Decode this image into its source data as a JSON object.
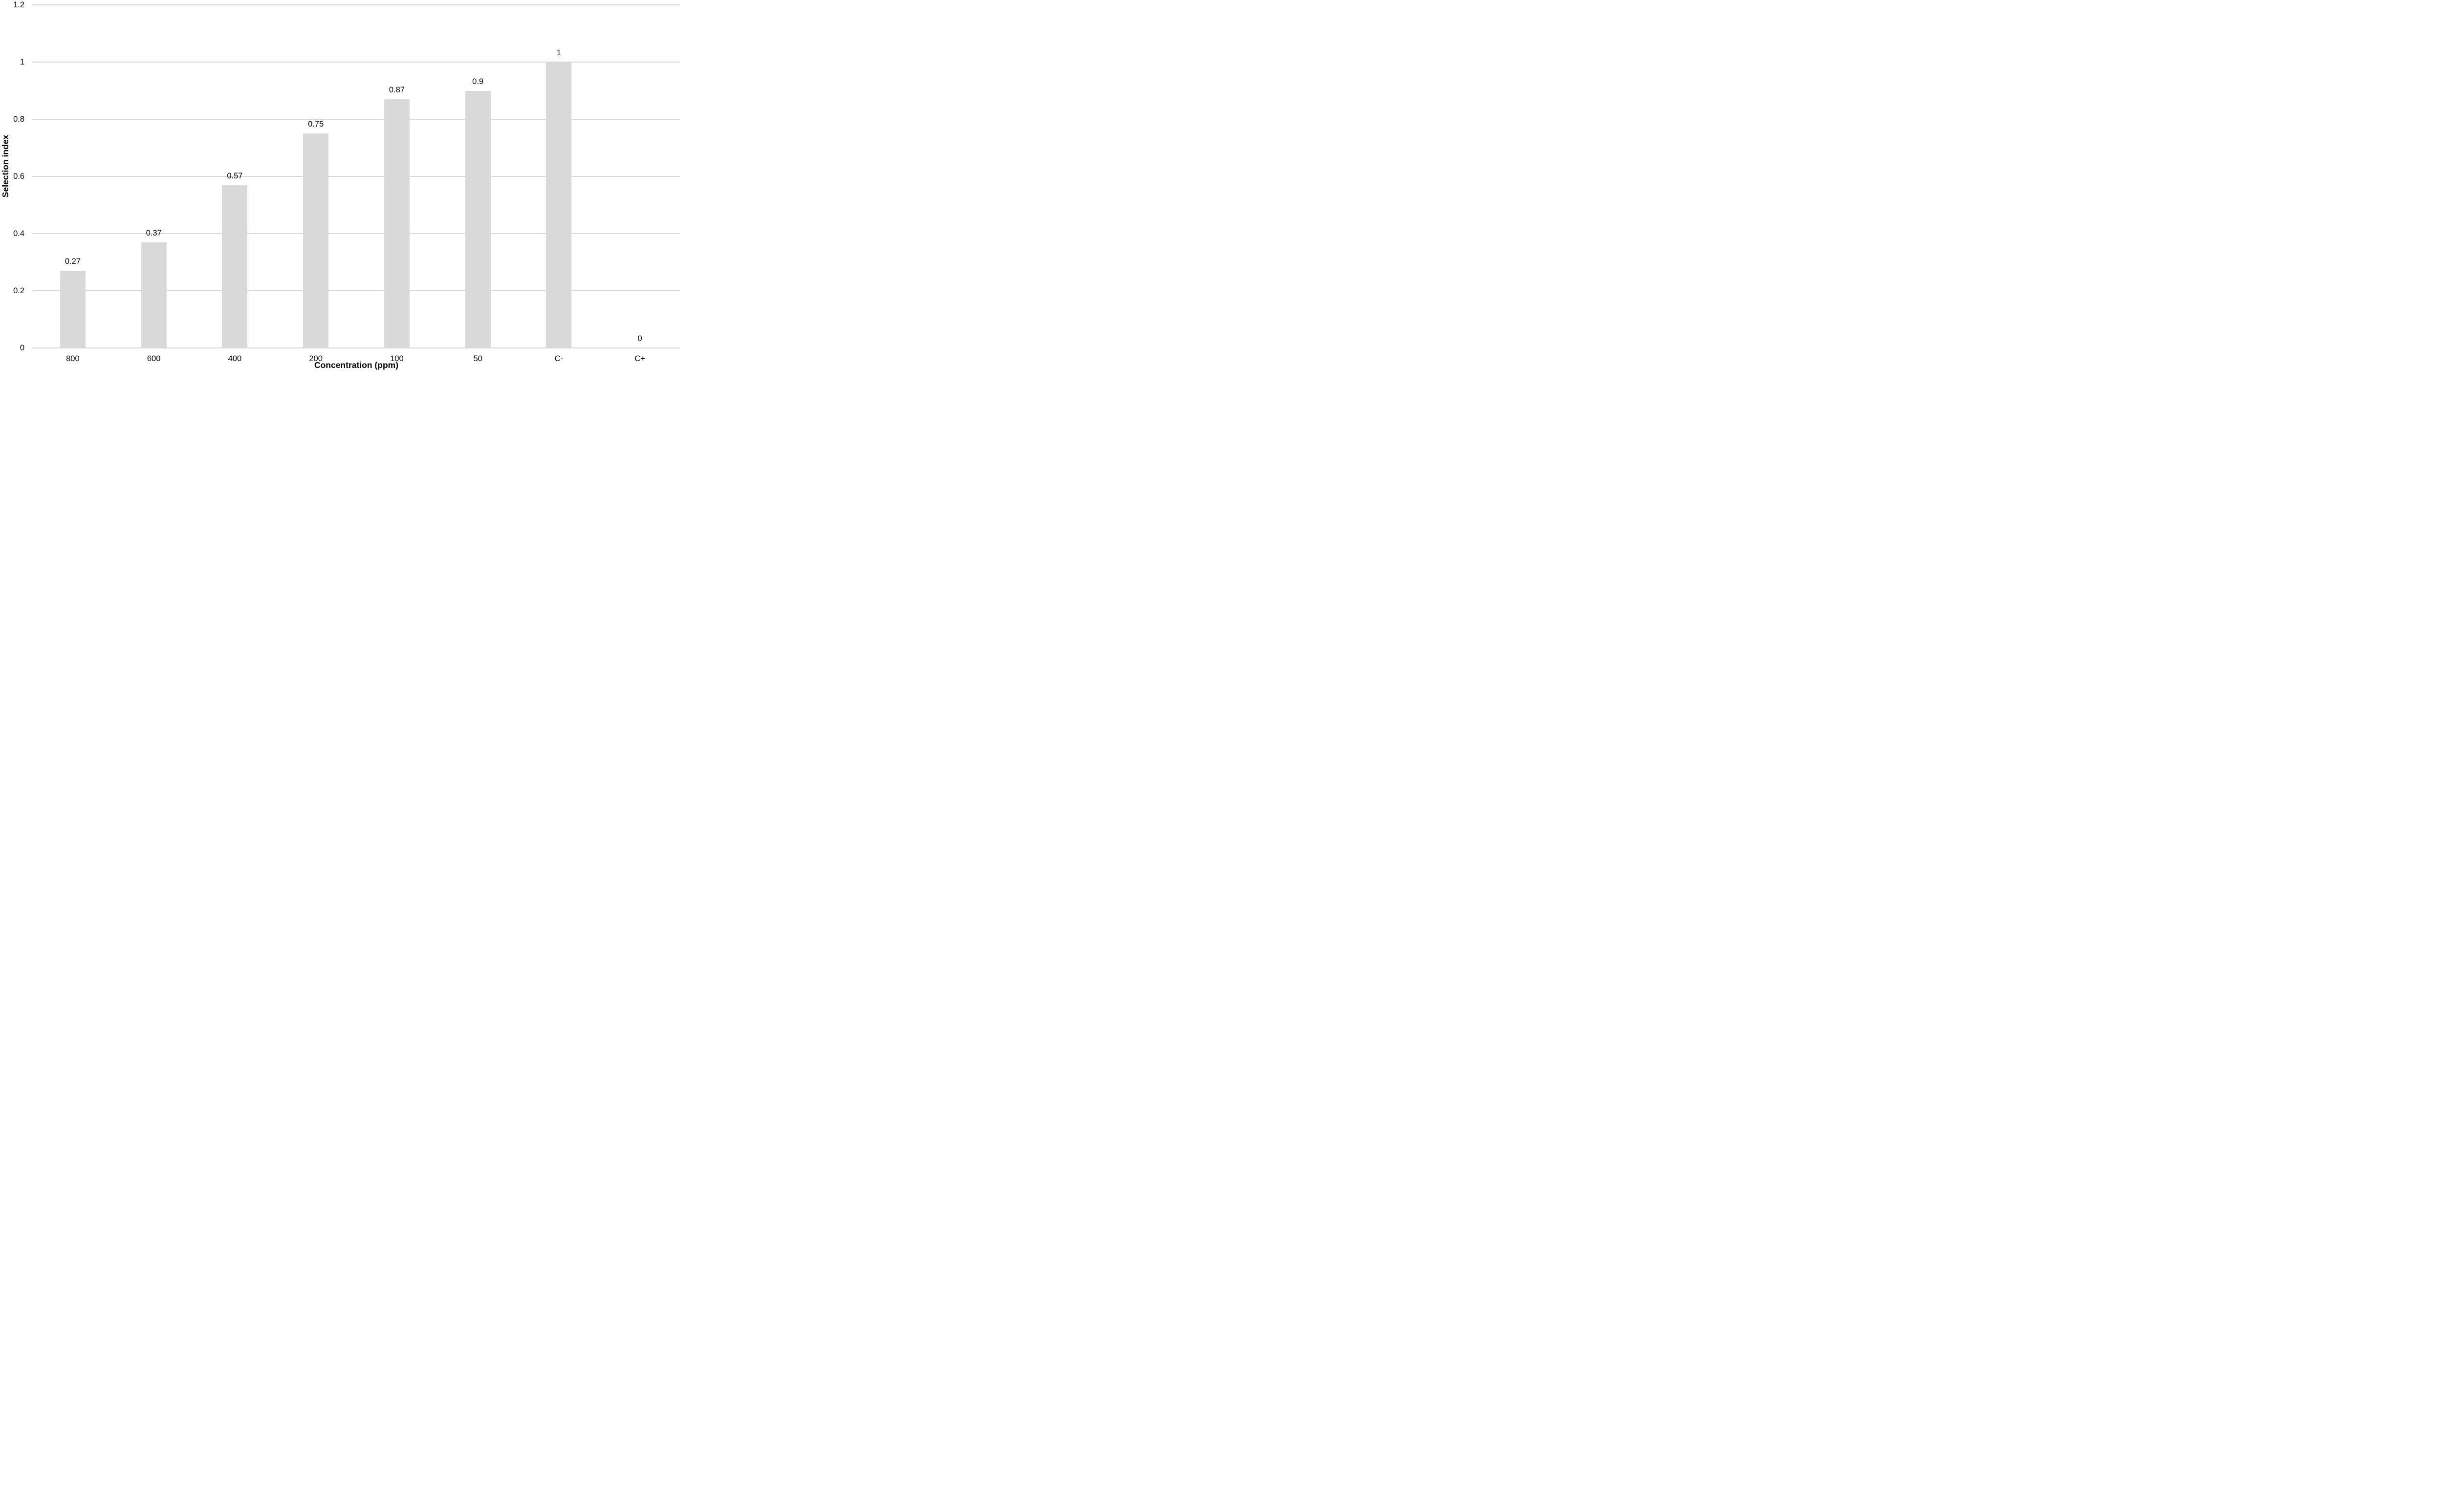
{
  "chart_data": {
    "type": "bar",
    "title": "",
    "categories": [
      "800",
      "600",
      "400",
      "200",
      "100",
      "50",
      "C-",
      "C+"
    ],
    "values": [
      0.27,
      0.37,
      0.57,
      0.75,
      0.87,
      0.9,
      1,
      0
    ],
    "data_labels": [
      "0.27",
      "0.37",
      "0.57",
      "0.75",
      "0.87",
      "0.9",
      "1",
      "0"
    ],
    "xlabel": "Concentration (ppm)",
    "ylabel": "Selection index",
    "ylim": [
      0,
      1.2
    ],
    "yticks": [
      0,
      0.2,
      0.4,
      0.6,
      0.8,
      1,
      1.2
    ],
    "ytick_labels": [
      "0",
      "0.2",
      "0.4",
      "0.6",
      "0.8",
      "1",
      "1.2"
    ],
    "grid": "horizontal",
    "legend": "none",
    "colors": {
      "bar": "#d9d9d9",
      "gridline": "#d9d9d9",
      "axis_line": "#d9d9d9",
      "text": "#000000",
      "background": "#ffffff"
    }
  }
}
